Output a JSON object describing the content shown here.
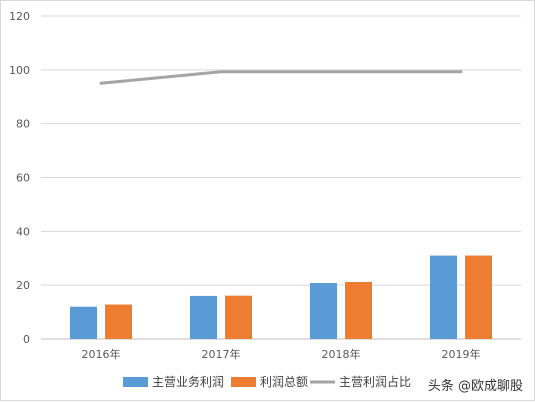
{
  "chart_data": {
    "type": "bar",
    "categories": [
      "2016年",
      "2017年",
      "2018年",
      "2019年"
    ],
    "series": [
      {
        "name": "主营业务利润",
        "type": "bar",
        "values": [
          12,
          16,
          20.8,
          31
        ],
        "color": "#5b9bd5"
      },
      {
        "name": "利润总额",
        "type": "bar",
        "values": [
          12.8,
          16.1,
          21.2,
          31
        ],
        "color": "#ed7d31"
      },
      {
        "name": "主营利润占比",
        "type": "line",
        "values": [
          95,
          99.3,
          99.3,
          99.3
        ],
        "color": "#a5a5a5"
      }
    ],
    "ylim": [
      0,
      120
    ],
    "yticks": [
      0,
      20,
      40,
      60,
      80,
      100,
      120
    ],
    "title": "",
    "xlabel": "",
    "ylabel": "",
    "grid": true,
    "legend": "bottom"
  },
  "watermark": {
    "text": "头条 @欧成聊股"
  }
}
